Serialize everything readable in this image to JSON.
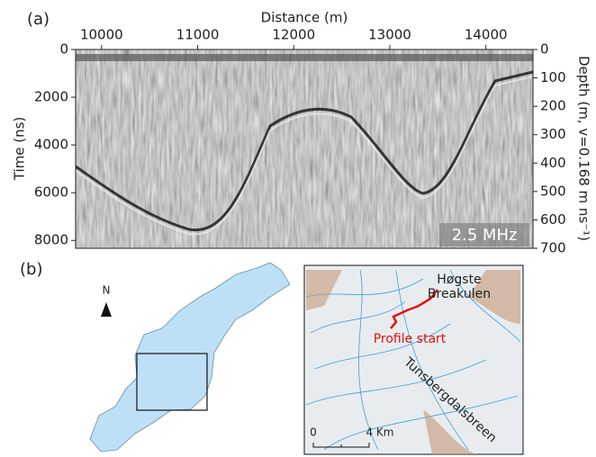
{
  "chart_data": {
    "type": "radargram",
    "panel": "(a)",
    "xlabel": "Distance (m)",
    "ylabel": "Time (ns)",
    "y2label": "Depth (m, v=0.168 m ns⁻¹)",
    "annotation": "2.5 MHz",
    "xlim": [
      9730,
      14490
    ],
    "xticks": [
      10000,
      11000,
      12000,
      13000,
      14000
    ],
    "ylim": [
      0,
      8330
    ],
    "yticks": [
      0,
      2000,
      4000,
      6000,
      8000
    ],
    "y2lim": [
      0,
      700
    ],
    "y2ticks": [
      0,
      100,
      200,
      300,
      400,
      500,
      600,
      700
    ]
  },
  "map": {
    "panel": "(b)",
    "north": "N",
    "summit": "Høgste\nBreakulen",
    "profile_start": "Profile start",
    "glacier": "Tunsbergdalsbreen",
    "scale_start": "0",
    "scale_end": "4 Km"
  }
}
